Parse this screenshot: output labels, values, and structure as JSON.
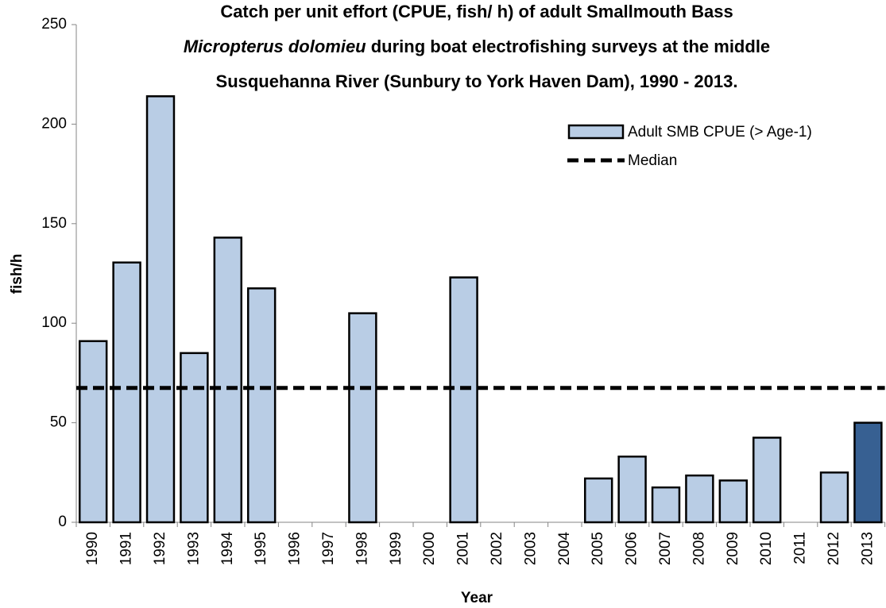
{
  "chart_data": {
    "type": "bar",
    "title": {
      "line1": "Catch per unit effort (CPUE, fish/ h) of adult Smallmouth Bass",
      "line2_italic": "Micropterus dolomieu",
      "line2": " during boat electrofishing surveys at the middle",
      "line3": "Susquehanna River (Sunbury to York Haven Dam), 1990 - 2013."
    },
    "x_label": "Year",
    "y_label": "fish/h",
    "categories": [
      "1990",
      "1991",
      "1992",
      "1993",
      "1994",
      "1995",
      "1996",
      "1997",
      "1998",
      "1999",
      "2000",
      "2001",
      "2002",
      "2003",
      "2004",
      "2005",
      "2006",
      "2007",
      "2008",
      "2009",
      "2010",
      "2011",
      "2012",
      "2013"
    ],
    "series": [
      {
        "name": "Adult SMB CPUE (> Age-1)",
        "color": "#b9cde5",
        "colors": [
          "#b9cde5",
          "#b9cde5",
          "#b9cde5",
          "#b9cde5",
          "#b9cde5",
          "#b9cde5",
          "#b9cde5",
          "#b9cde5",
          "#b9cde5",
          "#b9cde5",
          "#b9cde5",
          "#b9cde5",
          "#b9cde5",
          "#b9cde5",
          "#b9cde5",
          "#b9cde5",
          "#b9cde5",
          "#b9cde5",
          "#b9cde5",
          "#b9cde5",
          "#b9cde5",
          "#b9cde5",
          "#b9cde5",
          "#376092"
        ],
        "values": [
          91,
          130.5,
          214,
          85,
          143,
          117.5,
          null,
          null,
          105,
          null,
          null,
          123,
          null,
          null,
          null,
          22,
          33,
          17.5,
          23.5,
          21,
          42.5,
          null,
          25,
          50
        ]
      }
    ],
    "median": {
      "name": "Median",
      "value": 67.5,
      "color": "#000000"
    },
    "ylim": [
      0,
      250
    ],
    "yticks": [
      0,
      50,
      100,
      150,
      200,
      250
    ],
    "legend": "upper right"
  }
}
